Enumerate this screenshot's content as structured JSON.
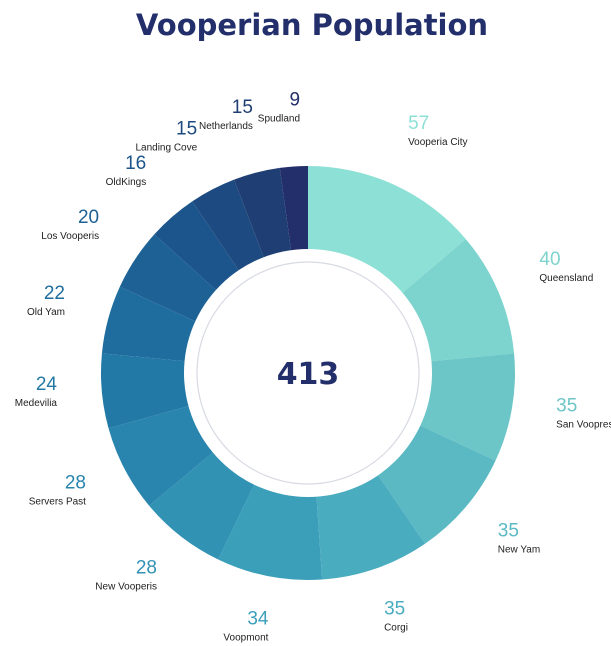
{
  "chart_data": {
    "type": "pie",
    "variant": "donut",
    "title": "Vooperian Population",
    "center_label": "413",
    "categories": [
      "Vooperia City",
      "Queensland",
      "San Voopresco",
      "New Yam",
      "Corgi",
      "Voopmont",
      "New Vooperis",
      "Servers Past",
      "Medevilia",
      "Old Yam",
      "Los Vooperis",
      "OldKings",
      "Landing Cove",
      "Netherlands",
      "Spudland"
    ],
    "values": [
      57,
      40,
      35,
      35,
      35,
      34,
      28,
      28,
      24,
      22,
      20,
      16,
      15,
      15,
      9
    ],
    "colors": [
      "#8de0d6",
      "#7dd3cd",
      "#6cc6c7",
      "#5bb9c3",
      "#4aacbf",
      "#3c9fba",
      "#3192b4",
      "#2985ad",
      "#2279a6",
      "#1f6d9e",
      "#1d6195",
      "#1c558b",
      "#1d4a80",
      "#1f3f74",
      "#232f6b"
    ],
    "value_label_colors": [
      "#8de0d6",
      "#7dd3cd",
      "#6cc6c7",
      "#5bb9c3",
      "#4aacbf",
      "#3c9fba",
      "#3192b4",
      "#2985ad",
      "#2279a6",
      "#1f6d9e",
      "#1d6195",
      "#1c558b",
      "#1d4a80",
      "#1f3f74",
      "#232f6b"
    ],
    "legend": "none"
  }
}
